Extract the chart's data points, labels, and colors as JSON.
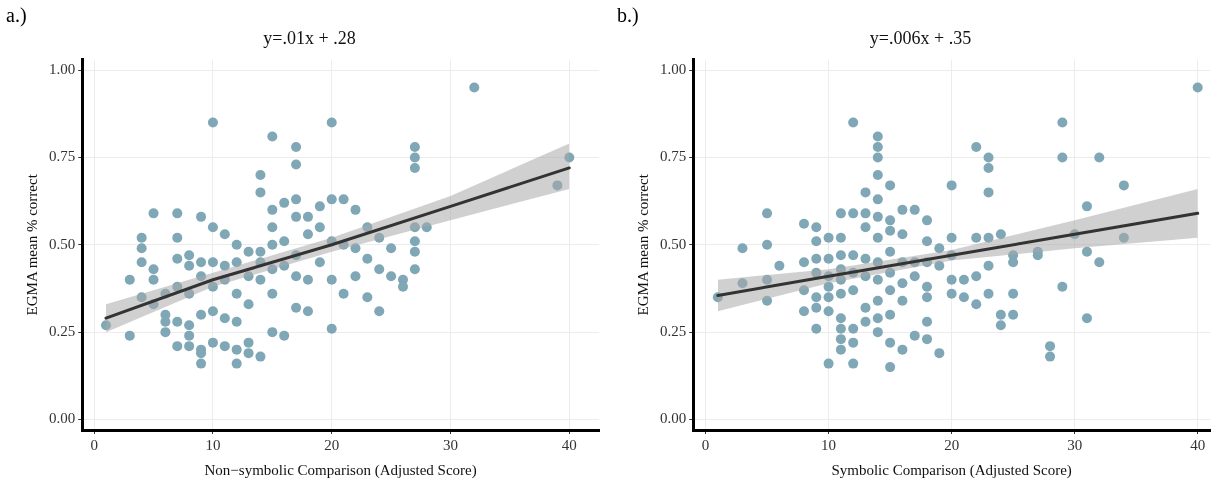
{
  "chart_data": [
    {
      "type": "scatter",
      "title": "y=.01x + .28",
      "xlabel": "Non−symbolic Comparison (Adjusted Score)",
      "ylabel": "EGMA mean % correct",
      "annotations": [
        "a.)"
      ],
      "xlim": [
        -1,
        42.5
      ],
      "ylim": [
        -0.03,
        1.03
      ],
      "xticks": [
        0,
        10,
        20,
        30,
        40
      ],
      "yticks": [
        {
          "value": 0,
          "label": "0.00"
        },
        {
          "value": 0.25,
          "label": "0.25"
        },
        {
          "value": 0.5,
          "label": "0.50"
        },
        {
          "value": 0.75,
          "label": "0.75"
        },
        {
          "value": 1,
          "label": "1.00"
        }
      ],
      "grid": true,
      "legend": false,
      "series": [
        {
          "marker": "circle",
          "color": "#7fa7b5",
          "x": [
            1,
            3,
            3,
            4,
            4,
            4,
            4,
            5,
            5,
            5,
            5,
            6,
            6,
            6,
            6,
            7,
            7,
            7,
            7,
            7,
            7,
            8,
            8,
            8,
            8,
            8,
            8,
            9,
            9,
            9,
            9,
            9,
            9,
            9,
            10,
            10,
            10,
            10,
            10,
            10,
            11,
            11,
            11,
            11,
            11,
            12,
            12,
            12,
            12,
            12,
            12,
            13,
            13,
            13,
            13,
            13,
            14,
            14,
            14,
            14,
            14,
            14,
            15,
            15,
            15,
            15,
            15,
            15,
            15,
            16,
            16,
            16,
            16,
            17,
            17,
            17,
            17,
            17,
            17,
            17,
            18,
            18,
            18,
            18,
            19,
            19,
            19,
            20,
            20,
            20,
            20,
            20,
            21,
            21,
            21,
            22,
            22,
            22,
            23,
            23,
            23,
            24,
            24,
            24,
            25,
            25,
            26,
            26,
            27,
            27,
            27,
            27,
            27,
            27,
            27,
            28,
            32,
            39,
            40
          ],
          "values": [
            0.27,
            0.24,
            0.4,
            0.35,
            0.45,
            0.52,
            0.49,
            0.43,
            0.59,
            0.4,
            0.33,
            0.36,
            0.3,
            0.28,
            0.25,
            0.46,
            0.52,
            0.59,
            0.38,
            0.28,
            0.21,
            0.44,
            0.47,
            0.36,
            0.27,
            0.21,
            0.24,
            0.2,
            0.41,
            0.3,
            0.58,
            0.45,
            0.16,
            0.19,
            0.85,
            0.55,
            0.38,
            0.22,
            0.31,
            0.45,
            0.53,
            0.44,
            0.4,
            0.29,
            0.21,
            0.5,
            0.36,
            0.28,
            0.2,
            0.16,
            0.45,
            0.48,
            0.41,
            0.22,
            0.19,
            0.33,
            0.65,
            0.7,
            0.48,
            0.45,
            0.4,
            0.18,
            0.81,
            0.6,
            0.55,
            0.5,
            0.43,
            0.36,
            0.25,
            0.62,
            0.51,
            0.44,
            0.24,
            0.78,
            0.73,
            0.63,
            0.58,
            0.47,
            0.41,
            0.32,
            0.58,
            0.53,
            0.4,
            0.31,
            0.61,
            0.55,
            0.45,
            0.85,
            0.63,
            0.51,
            0.4,
            0.26,
            0.63,
            0.5,
            0.36,
            0.6,
            0.49,
            0.41,
            0.55,
            0.46,
            0.35,
            0.52,
            0.43,
            0.31,
            0.49,
            0.41,
            0.4,
            0.38,
            0.78,
            0.75,
            0.72,
            0.55,
            0.51,
            0.48,
            0.43,
            0.55,
            0.95,
            0.67,
            0.75
          ]
        },
        {
          "type": "line",
          "marker": "none",
          "color": "#333333",
          "x": [
            1,
            10,
            20,
            30,
            40
          ],
          "values": [
            0.29,
            0.4,
            0.5,
            0.61,
            0.72
          ],
          "lower": [
            0.25,
            0.38,
            0.48,
            0.57,
            0.66
          ],
          "upper": [
            0.33,
            0.42,
            0.52,
            0.64,
            0.79
          ]
        }
      ]
    },
    {
      "type": "scatter",
      "title": "y=.006x + .35",
      "xlabel": "Symbolic Comparison (Adjusted Score)",
      "ylabel": "EGMA mean % correct",
      "annotations": [
        "b.)"
      ],
      "xlim": [
        -1,
        41
      ],
      "ylim": [
        -0.03,
        1.03
      ],
      "xticks": [
        0,
        10,
        20,
        30,
        40
      ],
      "yticks": [
        {
          "value": 0,
          "label": "0.00"
        },
        {
          "value": 0.25,
          "label": "0.25"
        },
        {
          "value": 0.5,
          "label": "0.50"
        },
        {
          "value": 0.75,
          "label": "0.75"
        },
        {
          "value": 1,
          "label": "1.00"
        }
      ],
      "grid": true,
      "legend": false,
      "series": [
        {
          "marker": "circle",
          "color": "#7fa7b5",
          "x": [
            1,
            3,
            3,
            5,
            5,
            5,
            5,
            6,
            8,
            8,
            8,
            8,
            9,
            9,
            9,
            9,
            9,
            9,
            9,
            10,
            10,
            10,
            10,
            10,
            10,
            10,
            11,
            11,
            11,
            11,
            11,
            11,
            11,
            11,
            11,
            11,
            12,
            12,
            12,
            12,
            12,
            12,
            12,
            12,
            13,
            13,
            13,
            13,
            13,
            13,
            13,
            14,
            14,
            14,
            14,
            14,
            14,
            14,
            14,
            14,
            14,
            14,
            14,
            15,
            15,
            15,
            15,
            15,
            15,
            15,
            15,
            15,
            16,
            16,
            16,
            16,
            16,
            16,
            17,
            17,
            17,
            17,
            18,
            18,
            18,
            18,
            18,
            18,
            18,
            19,
            19,
            19,
            20,
            20,
            20,
            20,
            20,
            21,
            21,
            22,
            22,
            22,
            22,
            23,
            23,
            23,
            23,
            23,
            23,
            24,
            24,
            24,
            25,
            25,
            25,
            25,
            27,
            27,
            28,
            28,
            29,
            29,
            29,
            30,
            31,
            31,
            31,
            32,
            32,
            34,
            34,
            40
          ],
          "values": [
            0.35,
            0.49,
            0.39,
            0.59,
            0.5,
            0.4,
            0.34,
            0.44,
            0.56,
            0.45,
            0.37,
            0.31,
            0.55,
            0.51,
            0.46,
            0.42,
            0.35,
            0.32,
            0.26,
            0.52,
            0.46,
            0.41,
            0.38,
            0.35,
            0.31,
            0.16,
            0.59,
            0.52,
            0.47,
            0.43,
            0.4,
            0.36,
            0.29,
            0.26,
            0.23,
            0.2,
            0.85,
            0.59,
            0.47,
            0.42,
            0.37,
            0.26,
            0.22,
            0.16,
            0.65,
            0.59,
            0.55,
            0.46,
            0.41,
            0.32,
            0.28,
            0.81,
            0.78,
            0.75,
            0.7,
            0.63,
            0.58,
            0.52,
            0.45,
            0.4,
            0.34,
            0.29,
            0.25,
            0.67,
            0.57,
            0.54,
            0.48,
            0.42,
            0.37,
            0.3,
            0.22,
            0.15,
            0.6,
            0.53,
            0.45,
            0.39,
            0.34,
            0.2,
            0.6,
            0.45,
            0.41,
            0.24,
            0.57,
            0.51,
            0.45,
            0.38,
            0.35,
            0.28,
            0.23,
            0.49,
            0.44,
            0.19,
            0.67,
            0.52,
            0.47,
            0.4,
            0.36,
            0.4,
            0.35,
            0.78,
            0.52,
            0.41,
            0.33,
            0.75,
            0.72,
            0.65,
            0.52,
            0.44,
            0.36,
            0.53,
            0.3,
            0.27,
            0.47,
            0.45,
            0.3,
            0.36,
            0.47,
            0.48,
            0.21,
            0.18,
            0.85,
            0.75,
            0.38,
            0.53,
            0.61,
            0.48,
            0.29,
            0.75,
            0.45,
            0.67,
            0.52,
            0.95
          ]
        },
        {
          "type": "line",
          "marker": "none",
          "color": "#333333",
          "x": [
            1,
            10,
            20,
            30,
            40
          ],
          "values": [
            0.355,
            0.41,
            0.47,
            0.53,
            0.59
          ],
          "lower": [
            0.31,
            0.39,
            0.455,
            0.49,
            0.52
          ],
          "upper": [
            0.4,
            0.43,
            0.485,
            0.57,
            0.66
          ]
        }
      ]
    }
  ]
}
